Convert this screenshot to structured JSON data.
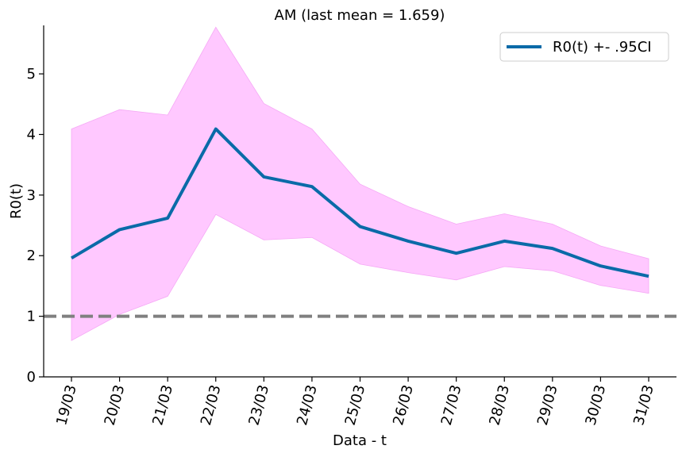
{
  "chart_data": {
    "type": "line",
    "title": "AM (last mean = 1.659)",
    "xlabel": "Data - t",
    "ylabel": "R0(t)",
    "categories": [
      "19/03",
      "20/03",
      "21/03",
      "22/03",
      "23/03",
      "24/03",
      "25/03",
      "26/03",
      "27/03",
      "28/03",
      "29/03",
      "30/03",
      "31/03"
    ],
    "ylim": [
      0,
      5.8
    ],
    "yticks": [
      0,
      1,
      2,
      3,
      4,
      5
    ],
    "series": [
      {
        "name": "R0(t) +- .95CI",
        "values": [
          1.96,
          2.43,
          2.62,
          4.09,
          3.3,
          3.14,
          2.48,
          2.24,
          2.04,
          2.24,
          2.12,
          1.83,
          1.66
        ],
        "lower": [
          0.6,
          1.03,
          1.33,
          2.68,
          2.26,
          2.3,
          1.86,
          1.72,
          1.6,
          1.82,
          1.75,
          1.51,
          1.38
        ],
        "upper": [
          4.09,
          4.41,
          4.32,
          5.77,
          4.51,
          4.09,
          3.18,
          2.81,
          2.52,
          2.69,
          2.52,
          2.16,
          1.95
        ],
        "color": "#0a6aa8",
        "band_color": "#ffc8ff"
      }
    ],
    "reference_line": {
      "y": 1,
      "style": "dashed",
      "color": "#808080"
    },
    "legend": {
      "position": "top-right",
      "label": "R0(t) +- .95CI"
    },
    "grid": false
  }
}
